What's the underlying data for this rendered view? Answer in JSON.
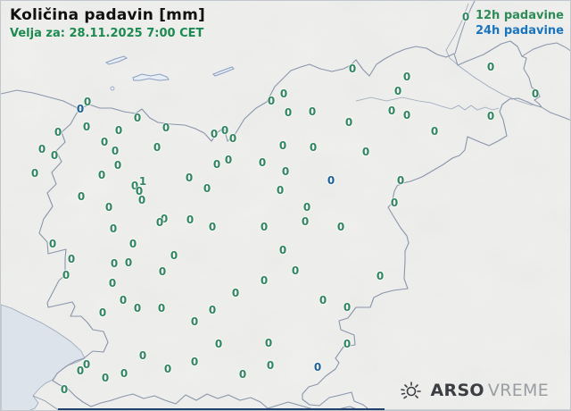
{
  "header": {
    "title": "Količina padavin [mm]",
    "valid_for": "Velja za: 28.11.2025 7:00 CET"
  },
  "legend": {
    "item_12h": "12h padavine",
    "item_24h": "24h padavine"
  },
  "branding": {
    "arso": "ARSO",
    "vreme": "VREME"
  },
  "colors": {
    "title": "#111111",
    "subtitle_green": "#1c8a50",
    "legend_green": "#2e8b57",
    "legend_blue": "#1b74be",
    "point_green": "#2e8560",
    "point_blue": "#1c6096",
    "border_line": "#8a95ab",
    "sea": "#dde3ea",
    "map_bg": "#f0f1ee",
    "bottom_bar": "#20416e"
  },
  "stations": {
    "note": "precipitation values in mm; c: g = 12h (green), b = 24h (blue)",
    "points": [
      [
        97,
        113,
        "0",
        "g"
      ],
      [
        89,
        121,
        "0",
        "b"
      ],
      [
        153,
        131,
        "0",
        "g"
      ],
      [
        64,
        147,
        "0",
        "g"
      ],
      [
        96,
        141,
        "0",
        "g"
      ],
      [
        132,
        145,
        "0",
        "g"
      ],
      [
        185,
        142,
        "0",
        "g"
      ],
      [
        46,
        166,
        "0",
        "g"
      ],
      [
        60,
        173,
        "0",
        "g"
      ],
      [
        116,
        158,
        "0",
        "g"
      ],
      [
        128,
        168,
        "0",
        "g"
      ],
      [
        175,
        164,
        "0",
        "g"
      ],
      [
        239,
        149,
        "0",
        "g"
      ],
      [
        251,
        145,
        "0",
        "g"
      ],
      [
        260,
        154,
        "0",
        "g"
      ],
      [
        303,
        112,
        "0",
        "g"
      ],
      [
        317,
        104,
        "0",
        "g"
      ],
      [
        322,
        125,
        "0",
        "g"
      ],
      [
        38,
        193,
        "0",
        "g"
      ],
      [
        113,
        195,
        "0",
        "g"
      ],
      [
        131,
        184,
        "0",
        "g"
      ],
      [
        159,
        202,
        "1",
        "g"
      ],
      [
        150,
        207,
        "0",
        "g"
      ],
      [
        155,
        213,
        "0",
        "g"
      ],
      [
        158,
        223,
        "0",
        "g"
      ],
      [
        90,
        219,
        "0",
        "g"
      ],
      [
        121,
        231,
        "0",
        "g"
      ],
      [
        211,
        198,
        "0",
        "g"
      ],
      [
        231,
        210,
        "0",
        "g"
      ],
      [
        242,
        183,
        "0",
        "g"
      ],
      [
        255,
        178,
        "0",
        "g"
      ],
      [
        293,
        181,
        "0",
        "g"
      ],
      [
        316,
        162,
        "0",
        "g"
      ],
      [
        319,
        191,
        "0",
        "g"
      ],
      [
        313,
        212,
        "0",
        "g"
      ],
      [
        183,
        244,
        "0",
        "g"
      ],
      [
        178,
        248,
        "0",
        "g"
      ],
      [
        212,
        245,
        "0",
        "g"
      ],
      [
        237,
        253,
        "0",
        "g"
      ],
      [
        126,
        255,
        "0",
        "g"
      ],
      [
        295,
        253,
        "0",
        "g"
      ],
      [
        394,
        76,
        "0",
        "g"
      ],
      [
        549,
        74,
        "0",
        "g"
      ],
      [
        455,
        85,
        "0",
        "g"
      ],
      [
        445,
        101,
        "0",
        "g"
      ],
      [
        599,
        104,
        "0",
        "g"
      ],
      [
        349,
        124,
        "0",
        "g"
      ],
      [
        438,
        123,
        "0",
        "g"
      ],
      [
        455,
        128,
        "0",
        "g"
      ],
      [
        549,
        129,
        "0",
        "g"
      ],
      [
        390,
        136,
        "0",
        "g"
      ],
      [
        486,
        146,
        "0",
        "g"
      ],
      [
        350,
        164,
        "0",
        "g"
      ],
      [
        409,
        169,
        "0",
        "g"
      ],
      [
        370,
        201,
        "0",
        "b"
      ],
      [
        448,
        201,
        "0",
        "g"
      ],
      [
        343,
        231,
        "0",
        "g"
      ],
      [
        441,
        226,
        "0",
        "g"
      ],
      [
        341,
        247,
        "0",
        "g"
      ],
      [
        381,
        253,
        "0",
        "g"
      ],
      [
        521,
        18,
        "0",
        "g"
      ],
      [
        58,
        272,
        "0",
        "g"
      ],
      [
        79,
        289,
        "0",
        "g"
      ],
      [
        73,
        307,
        "0",
        "g"
      ],
      [
        148,
        272,
        "0",
        "g"
      ],
      [
        127,
        294,
        "0",
        "g"
      ],
      [
        143,
        293,
        "0",
        "g"
      ],
      [
        194,
        285,
        "0",
        "g"
      ],
      [
        181,
        303,
        "0",
        "g"
      ],
      [
        125,
        316,
        "0",
        "g"
      ],
      [
        316,
        279,
        "0",
        "g"
      ],
      [
        295,
        313,
        "0",
        "g"
      ],
      [
        263,
        327,
        "0",
        "g"
      ],
      [
        137,
        335,
        "0",
        "g"
      ],
      [
        153,
        344,
        "0",
        "g"
      ],
      [
        180,
        344,
        "0",
        "g"
      ],
      [
        237,
        346,
        "0",
        "g"
      ],
      [
        114,
        349,
        "0",
        "g"
      ],
      [
        217,
        359,
        "0",
        "g"
      ],
      [
        244,
        384,
        "0",
        "g"
      ],
      [
        300,
        383,
        "0",
        "g"
      ],
      [
        159,
        397,
        "0",
        "g"
      ],
      [
        217,
        404,
        "0",
        "g"
      ],
      [
        187,
        412,
        "0",
        "g"
      ],
      [
        302,
        408,
        "0",
        "g"
      ],
      [
        96,
        407,
        "0",
        "g"
      ],
      [
        89,
        414,
        "0",
        "g"
      ],
      [
        117,
        422,
        "0",
        "g"
      ],
      [
        138,
        417,
        "0",
        "g"
      ],
      [
        271,
        418,
        "0",
        "g"
      ],
      [
        71,
        435,
        "0",
        "g"
      ],
      [
        330,
        302,
        "0",
        "g"
      ],
      [
        425,
        308,
        "0",
        "g"
      ],
      [
        361,
        335,
        "0",
        "g"
      ],
      [
        388,
        343,
        "0",
        "g"
      ],
      [
        388,
        384,
        "0",
        "g"
      ],
      [
        355,
        410,
        "0",
        "b"
      ]
    ]
  }
}
